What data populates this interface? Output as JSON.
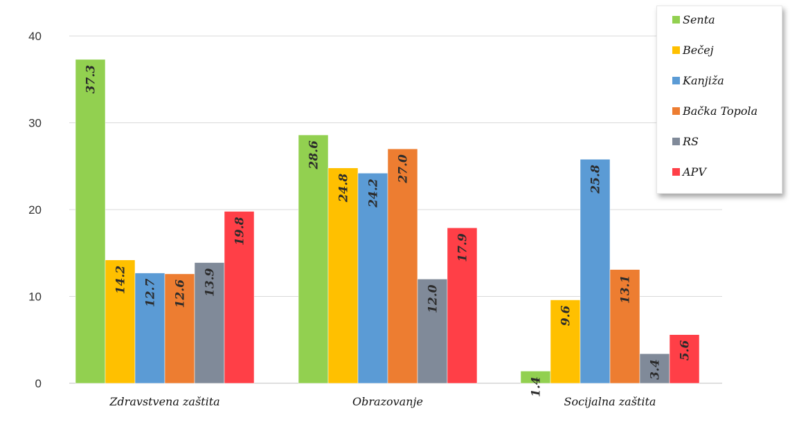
{
  "chart_data": {
    "type": "bar",
    "categories": [
      "Zdravstvena zaštita",
      "Obrazovanje",
      "Socijalna zaštita"
    ],
    "series": [
      {
        "name": "Senta",
        "color": "#92d050",
        "values": [
          37.3,
          28.6,
          1.4
        ]
      },
      {
        "name": "Bečej",
        "color": "#ffc000",
        "values": [
          14.2,
          24.8,
          9.6
        ]
      },
      {
        "name": "Kanjiža",
        "color": "#5b9bd5",
        "values": [
          12.7,
          24.2,
          25.8
        ]
      },
      {
        "name": "Bačka Topola",
        "color": "#ed7d31",
        "values": [
          12.6,
          27.0,
          13.1
        ]
      },
      {
        "name": "RS",
        "color": "#808a99",
        "values": [
          13.9,
          12.0,
          3.4
        ]
      },
      {
        "name": "APV",
        "color": "#ff3f47",
        "values": [
          19.8,
          17.9,
          5.6
        ]
      }
    ],
    "yticks": [
      0,
      10,
      20,
      30,
      40
    ],
    "ylim": [
      0,
      40
    ],
    "grid": true,
    "legend_position": "top-right",
    "data_label_orientation": "vertical"
  }
}
